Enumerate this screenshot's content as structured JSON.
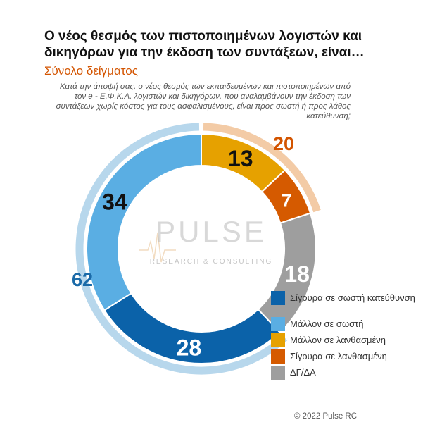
{
  "chart_data": {
    "type": "pie",
    "title": "Ο νέος θεσμός των πιστοποιημένων λογιστών και δικηγόρων για την έκδοση των συντάξεων, είναι…",
    "subtitle": "Σύνολο δείγματος",
    "question": "Κατά την άποψή σας, ο νέος θεσμός των εκπαιδευμένων και πιστοποιημένων από τον e - Ε.Φ.Κ.Α. λογιστών και δικηγόρων, που αναλαμβάνουν την έκδοση των συντάξεων χωρίς κόστος για τους ασφαλισμένους, είναι προς σωστή ή προς λάθος κατεύθυνση;",
    "slices": [
      {
        "label": "Σίγουρα σε σωστή κατεύθυνση",
        "value": 28,
        "color": "#0b62a9"
      },
      {
        "label": "Μάλλον σε σωστή",
        "value": 34,
        "color": "#5aaee3"
      },
      {
        "label": "Μάλλον σε λανθασμένη",
        "value": 13,
        "color": "#e6a100"
      },
      {
        "label": "Σίγουρα σε λανθασμένη",
        "value": 7,
        "color": "#d55a00"
      },
      {
        "label": "ΔΓ/ΔΑ",
        "value": 18,
        "color": "#9e9e9e"
      }
    ],
    "groups": [
      {
        "label": "62",
        "value": 62,
        "color": "#b7d7ec",
        "text_color": "#1a6aa8"
      },
      {
        "label": "20",
        "value": 20,
        "color": "#f3cba6",
        "text_color": "#d35400"
      }
    ],
    "legend_position": "bottom-right"
  },
  "watermark": {
    "brand": "PULSE",
    "tagline": "RESEARCH & CONSULTING"
  },
  "footer": "© 2022 Pulse RC"
}
